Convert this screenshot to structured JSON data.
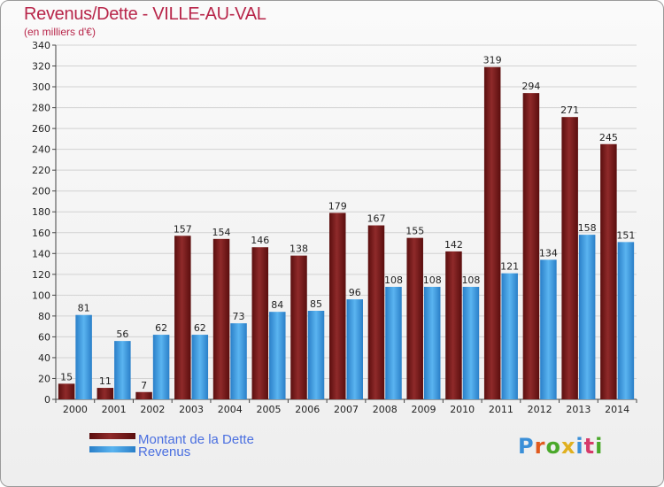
{
  "header": {
    "title": "Revenus/Dette - VILLE-AU-VAL",
    "subtitle": "(en milliers d'€)"
  },
  "brand": {
    "name": "Proxiti",
    "letter_colors": [
      "#3a8fd8",
      "#e05a1e",
      "#4aa82a",
      "#e0b020",
      "#3a8fd8",
      "#d63a6a",
      "#4aa82a"
    ]
  },
  "colors": {
    "dette": "#7a1a1a",
    "dette_light": "#8f2a2a",
    "revenus": "#4aa6e8",
    "revenus_dark": "#2a7fc8"
  },
  "chart_data": {
    "type": "bar",
    "categories": [
      "2000",
      "2001",
      "2002",
      "2003",
      "2004",
      "2005",
      "2006",
      "2007",
      "2008",
      "2009",
      "2010",
      "2011",
      "2012",
      "2013",
      "2014"
    ],
    "series": [
      {
        "name": "Montant de la Dette",
        "values": [
          15,
          11,
          7,
          157,
          154,
          146,
          138,
          179,
          167,
          155,
          142,
          319,
          294,
          271,
          245
        ]
      },
      {
        "name": "Revenus",
        "values": [
          81,
          56,
          62,
          62,
          73,
          84,
          85,
          96,
          108,
          108,
          108,
          121,
          134,
          158,
          151
        ]
      }
    ],
    "ylim": [
      0,
      340
    ],
    "yticks": [
      0,
      20,
      40,
      60,
      80,
      100,
      120,
      140,
      160,
      180,
      200,
      220,
      240,
      260,
      280,
      300,
      320,
      340
    ],
    "grid": true,
    "legend_position": "bottom-left"
  }
}
